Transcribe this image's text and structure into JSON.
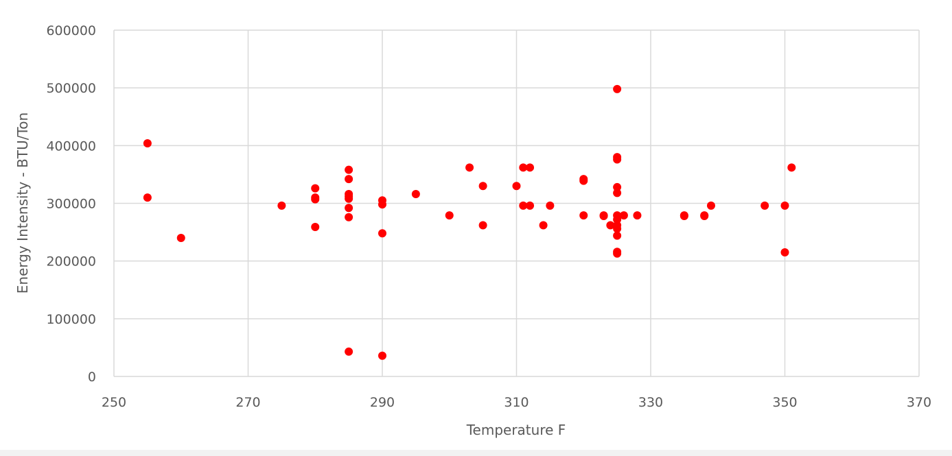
{
  "chart_data": {
    "type": "scatter",
    "title": "",
    "xlabel": "Temperature F",
    "ylabel": "Energy Intensity - BTU/Ton",
    "xlim": [
      250,
      370
    ],
    "ylim": [
      0,
      600000
    ],
    "x_ticks": [
      250,
      270,
      290,
      310,
      330,
      350,
      370
    ],
    "x_tick_labels": [
      "250",
      "270",
      "290",
      "310",
      "330",
      "350",
      "370"
    ],
    "y_ticks": [
      0,
      100000,
      200000,
      300000,
      400000,
      500000,
      600000
    ],
    "y_tick_labels": [
      "0",
      "100000",
      "200000",
      "300000",
      "400000",
      "500000",
      "600000"
    ],
    "grid": true,
    "legend": "none",
    "marker_color": "#ff0000",
    "series": [
      {
        "points": [
          [
            255,
            404000
          ],
          [
            255,
            310000
          ],
          [
            260,
            240000
          ],
          [
            275,
            296000
          ],
          [
            280,
            326000
          ],
          [
            280,
            310000
          ],
          [
            280,
            307000
          ],
          [
            280,
            259000
          ],
          [
            285,
            358000
          ],
          [
            285,
            342000
          ],
          [
            285,
            316000
          ],
          [
            285,
            312000
          ],
          [
            285,
            308000
          ],
          [
            285,
            292000
          ],
          [
            285,
            276000
          ],
          [
            285,
            43000
          ],
          [
            290,
            305000
          ],
          [
            290,
            298000
          ],
          [
            290,
            248000
          ],
          [
            290,
            36000
          ],
          [
            295,
            316000
          ],
          [
            300,
            279000
          ],
          [
            303,
            362000
          ],
          [
            305,
            330000
          ],
          [
            305,
            262000
          ],
          [
            310,
            330000
          ],
          [
            311,
            362000
          ],
          [
            311,
            296000
          ],
          [
            312,
            362000
          ],
          [
            312,
            296000
          ],
          [
            314,
            262000
          ],
          [
            315,
            296000
          ],
          [
            320,
            342000
          ],
          [
            320,
            339000
          ],
          [
            320,
            279000
          ],
          [
            323,
            279000
          ],
          [
            323,
            278000
          ],
          [
            324,
            262000
          ],
          [
            325,
            498000
          ],
          [
            325,
            380000
          ],
          [
            325,
            376000
          ],
          [
            325,
            328000
          ],
          [
            325,
            318000
          ],
          [
            325,
            279000
          ],
          [
            325,
            272000
          ],
          [
            325,
            262000
          ],
          [
            325,
            256000
          ],
          [
            325,
            244000
          ],
          [
            325,
            216000
          ],
          [
            325,
            213000
          ],
          [
            326,
            279000
          ],
          [
            328,
            279000
          ],
          [
            335,
            279000
          ],
          [
            335,
            278000
          ],
          [
            338,
            279000
          ],
          [
            338,
            278000
          ],
          [
            339,
            296000
          ],
          [
            347,
            296000
          ],
          [
            350,
            296000
          ],
          [
            350,
            215000
          ],
          [
            351,
            362000
          ]
        ]
      }
    ]
  }
}
